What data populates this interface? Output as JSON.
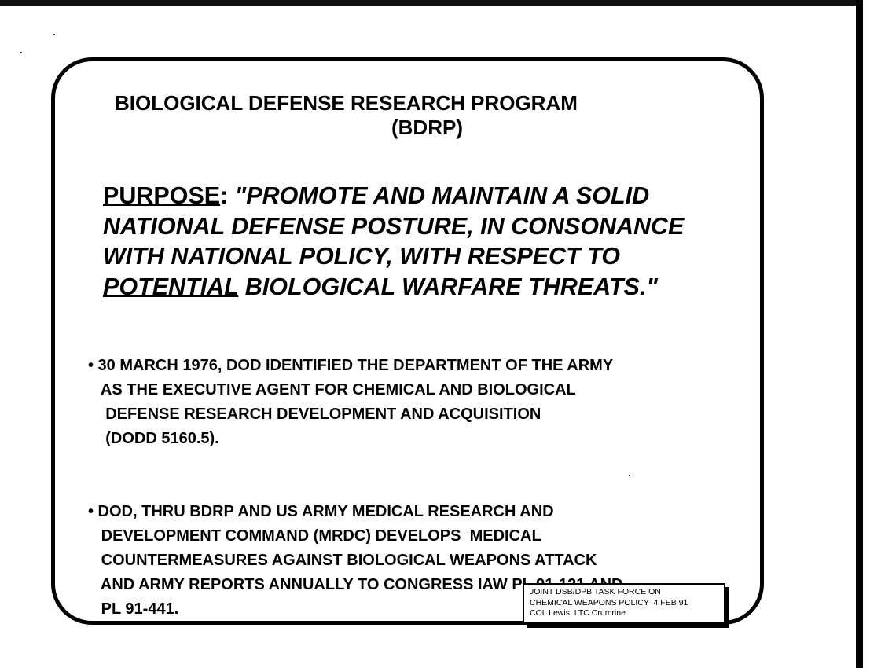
{
  "slide": {
    "title_line1": "BIOLOGICAL DEFENSE RESEARCH PROGRAM",
    "title_line2": "(BDRP)",
    "purpose": {
      "label": "PURPOSE",
      "colon": ":",
      "line1": " \"PROMOTE AND MAINTAIN A SOLID",
      "line2": "NATIONAL DEFENSE POSTURE, IN CONSONANCE",
      "line3": "WITH NATIONAL POLICY, WITH RESPECT TO",
      "line4_underlined": "POTENTIAL",
      "line4_rest": " BIOLOGICAL WARFARE THREATS.\""
    },
    "bullets": [
      {
        "lines": [
          "• 30 MARCH 1976, DOD IDENTIFIED THE DEPARTMENT OF THE ARMY",
          "   AS THE EXECUTIVE AGENT FOR CHEMICAL AND BIOLOGICAL",
          "    DEFENSE RESEARCH DEVELOPMENT AND ACQUISITION",
          "    (DODD 5160.5)."
        ]
      },
      {
        "lines": [
          "• DOD, THRU BDRP AND US ARMY MEDICAL RESEARCH AND",
          "   DEVELOPMENT COMMAND (MRDC) DEVELOPS  MEDICAL",
          "   COUNTERMEASURES AGAINST BIOLOGICAL WEAPONS ATTACK",
          "   AND ARMY REPORTS ANNUALLY TO CONGRESS IAW PL 91-121 AND",
          "   PL 91-441."
        ]
      }
    ],
    "footer": {
      "line1": "JOINT DSB/DPB TASK FORCE ON",
      "line2": "CHEMICAL WEAPONS POLICY  4 FEB 91",
      "line3": "COL Lewis, LTC Crumrine"
    }
  }
}
